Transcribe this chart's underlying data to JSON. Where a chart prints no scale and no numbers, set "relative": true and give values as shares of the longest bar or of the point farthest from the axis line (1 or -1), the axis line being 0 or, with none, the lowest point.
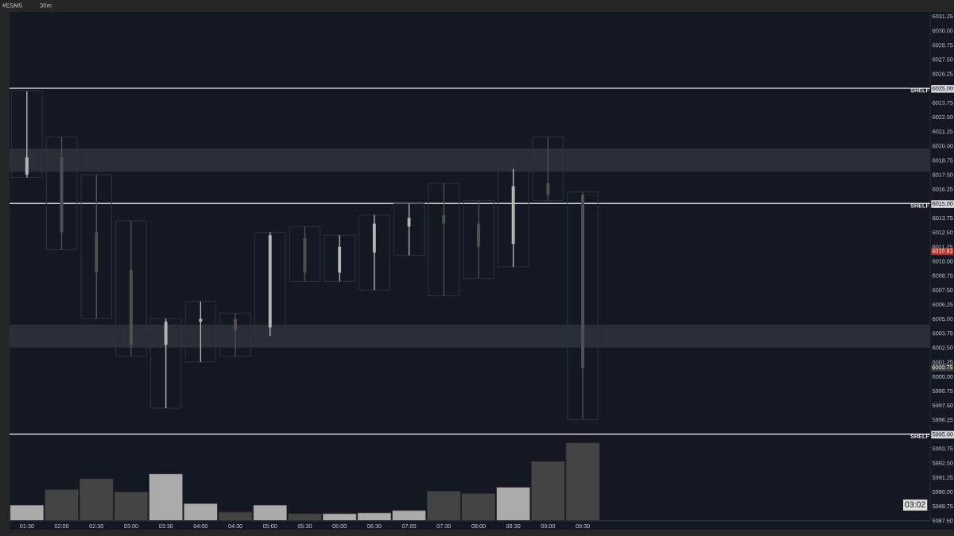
{
  "chart_data": [
    {
      "type": "candlestick",
      "title": "#ESM5",
      "subtitle": "30m",
      "x": [
        1.5,
        2.0,
        2.5,
        3.0,
        3.5,
        4.0,
        4.5,
        5.0,
        5.5,
        6.0,
        6.5,
        7.0,
        7.5,
        8.0,
        8.5,
        9.0,
        9.5
      ],
      "xlim": [
        1.25,
        14.5
      ],
      "xticks": [
        {
          "value": 1.5,
          "label": "01:30"
        },
        {
          "value": 2.0,
          "label": "02:00"
        },
        {
          "value": 2.5,
          "label": "02:30"
        },
        {
          "value": 3.0,
          "label": "03:00"
        },
        {
          "value": 3.5,
          "label": "03:30"
        },
        {
          "value": 4.0,
          "label": "04:00"
        },
        {
          "value": 4.5,
          "label": "04:30"
        },
        {
          "value": 5.0,
          "label": "05:00"
        },
        {
          "value": 5.5,
          "label": "05:30"
        },
        {
          "value": 6.0,
          "label": "06:00"
        },
        {
          "value": 6.5,
          "label": "06:30"
        },
        {
          "value": 7.0,
          "label": "07:00"
        },
        {
          "value": 7.5,
          "label": "07:30"
        },
        {
          "value": 8.0,
          "label": "08:00"
        },
        {
          "value": 8.5,
          "label": "08:30"
        },
        {
          "value": 9.0,
          "label": "09:00"
        },
        {
          "value": 9.5,
          "label": "09:30"
        }
      ],
      "ohlc": [
        [
          6017.5,
          6024.75,
          6017.25,
          6019.0
        ],
        [
          6019.0,
          6020.75,
          6011.0,
          6012.5
        ],
        [
          6012.5,
          6017.5,
          6005.0,
          6009.0
        ],
        [
          6009.25,
          6013.5,
          6001.75,
          6002.75
        ],
        [
          6002.75,
          6005.0,
          5997.25,
          6004.75
        ],
        [
          6004.75,
          6006.5,
          6001.25,
          6005.0
        ],
        [
          6005.0,
          6005.5,
          6001.75,
          6004.0
        ],
        [
          6004.25,
          6012.5,
          6003.5,
          6012.25
        ],
        [
          6012.0,
          6013.0,
          6008.25,
          6009.0
        ],
        [
          6009.0,
          6012.25,
          6008.25,
          6011.25
        ],
        [
          6010.75,
          6014.0,
          6007.5,
          6013.25
        ],
        [
          6013.0,
          6015.0,
          6010.5,
          6013.75
        ],
        [
          6014.0,
          6016.75,
          6007.0,
          6013.25
        ],
        [
          6013.25,
          6015.25,
          6008.5,
          6011.25
        ],
        [
          6011.5,
          6018.0,
          6009.5,
          6016.5
        ],
        [
          6016.75,
          6020.75,
          6015.25,
          6015.75
        ],
        [
          6015.75,
          6016.0,
          5996.25,
          6000.75
        ]
      ],
      "colors": [
        "#b4b4b4",
        "#505050",
        "#505050",
        "#505050",
        "#b4b4b4",
        "#b4b4b4",
        "#505050",
        "#b4b4b4",
        "#505050",
        "#b4b4b4",
        "#b4b4b4",
        "#b4b4b4",
        "#505050",
        "#505050",
        "#b4b4b4",
        "#505050",
        "#505050"
      ],
      "ylim": [
        5987.5,
        6031.5
      ],
      "yticks": [
        {
          "value": 5987.5,
          "label": "5987.50"
        },
        {
          "value": 5988.75,
          "label": "5988.75"
        },
        {
          "value": 5990,
          "label": "5990.00"
        },
        {
          "value": 5991.25,
          "label": "5991.25"
        },
        {
          "value": 5992.5,
          "label": "5992.50"
        },
        {
          "value": 5993.75,
          "label": "5993.75"
        },
        {
          "value": 5995,
          "label": "5995.00"
        },
        {
          "value": 5996.25,
          "label": "5996.25"
        },
        {
          "value": 5997.5,
          "label": "5997.50"
        },
        {
          "value": 5998.75,
          "label": "5998.75"
        },
        {
          "value": 6000,
          "label": "6000.00"
        },
        {
          "value": 6001.25,
          "label": "6001.25"
        },
        {
          "value": 6002.5,
          "label": "6002.50"
        },
        {
          "value": 6003.75,
          "label": "6003.75"
        },
        {
          "value": 6005,
          "label": "6005.00"
        },
        {
          "value": 6006.25,
          "label": "6006.25"
        },
        {
          "value": 6007.5,
          "label": "6007.50"
        },
        {
          "value": 6008.75,
          "label": "6008.75"
        },
        {
          "value": 6010,
          "label": "6010.00"
        },
        {
          "value": 6011.25,
          "label": "6011.25"
        },
        {
          "value": 6012.5,
          "label": "6012.50"
        },
        {
          "value": 6013.75,
          "label": "6013.75"
        },
        {
          "value": 6015,
          "label": "6015.00"
        },
        {
          "value": 6016.25,
          "label": "6016.25"
        },
        {
          "value": 6017.5,
          "label": "6017.50"
        },
        {
          "value": 6018.75,
          "label": "6018.75"
        },
        {
          "value": 6020,
          "label": "6020.00"
        },
        {
          "value": 6021.25,
          "label": "6021.25"
        },
        {
          "value": 6022.5,
          "label": "6022.50"
        },
        {
          "value": 6023.75,
          "label": "6023.75"
        },
        {
          "value": 6025,
          "label": "6025.00"
        },
        {
          "value": 6026.25,
          "label": "6026.25"
        },
        {
          "value": 6027.5,
          "label": "6027.50"
        },
        {
          "value": 6028.75,
          "label": "6028.75"
        },
        {
          "value": 6030,
          "label": "6030.00"
        },
        {
          "value": 6031.25,
          "label": "6031.25"
        }
      ],
      "bands": [
        {
          "axis": "y",
          "from": 6017.75,
          "to": 6019.75,
          "color": "#2a2e37"
        },
        {
          "axis": "y",
          "from": 6002.5,
          "to": 6004.5,
          "color": "#2a2e37"
        }
      ],
      "ref_lines": [
        {
          "axis": "y",
          "value": 6025,
          "label": "SHELF",
          "color": "#d2d5db"
        },
        {
          "axis": "y",
          "value": 6015,
          "label": "SHELF",
          "color": "#d2d5db"
        },
        {
          "axis": "y",
          "value": 5995,
          "label": "SHELF",
          "color": "#d2d5db"
        }
      ],
      "annotations": [
        "03:02",
        {
          "text": "6010.83",
          "y": 6010.83
        },
        {
          "text": "6000.75",
          "y": 6000.75
        }
      ]
    },
    {
      "type": "bar",
      "relative": true,
      "tick_labels": false,
      "x": [
        1.5,
        2.0,
        2.5,
        3.0,
        3.5,
        4.0,
        4.5,
        5.0,
        5.5,
        6.0,
        6.5,
        7.0,
        7.5,
        8.0,
        8.5,
        9.0,
        9.5
      ],
      "xlim": [
        1.25,
        14.5
      ],
      "values": [
        0.2,
        0.4,
        0.54,
        0.37,
        0.6,
        0.22,
        0.11,
        0.2,
        0.09,
        0.09,
        0.1,
        0.13,
        0.38,
        0.35,
        0.43,
        0.76,
        1.0
      ],
      "colors": [
        "#ababab",
        "#444444",
        "#444444",
        "#444444",
        "#ababab",
        "#ababab",
        "#444444",
        "#ababab",
        "#444444",
        "#ababab",
        "#ababab",
        "#ababab",
        "#444444",
        "#444444",
        "#ababab",
        "#444444",
        "#444444"
      ]
    }
  ]
}
